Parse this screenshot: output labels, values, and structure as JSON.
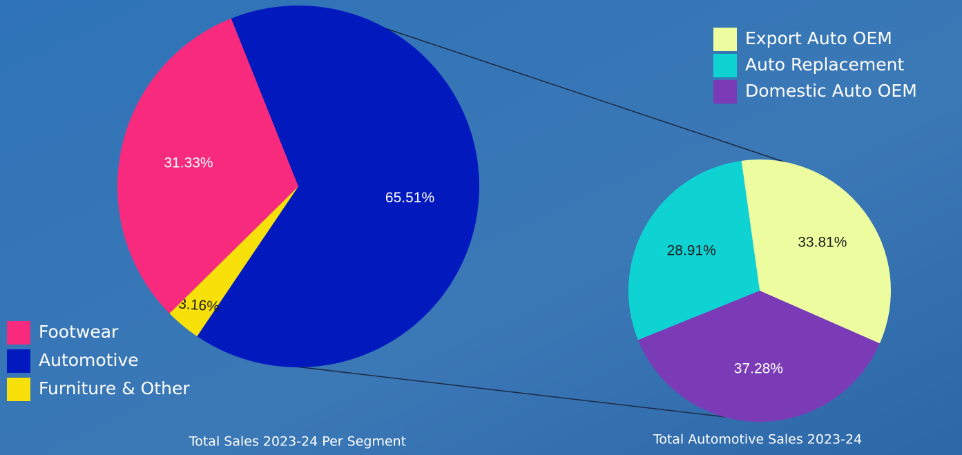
{
  "chart_data": [
    {
      "type": "pie",
      "title": "Total Sales 2023-24 Per Segment",
      "categories": [
        "Footwear",
        "Automotive",
        "Furniture & Other"
      ],
      "values": [
        31.33,
        65.51,
        3.16
      ],
      "value_labels": [
        "31.33%",
        "65.51%",
        "3.16%"
      ],
      "colors": [
        "#f72a7d",
        "#0219be",
        "#f8e10a"
      ]
    },
    {
      "type": "pie",
      "title": "Total Automotive Sales 2023-24",
      "categories": [
        "Export Auto OEM",
        "Auto Replacement",
        "Domestic Auto OEM"
      ],
      "values": [
        33.81,
        28.91,
        37.28
      ],
      "value_labels": [
        "33.81%",
        "28.91%",
        "37.28%"
      ],
      "colors": [
        "#eefca0",
        "#0fd3d3",
        "#7b3bb7"
      ]
    }
  ]
}
